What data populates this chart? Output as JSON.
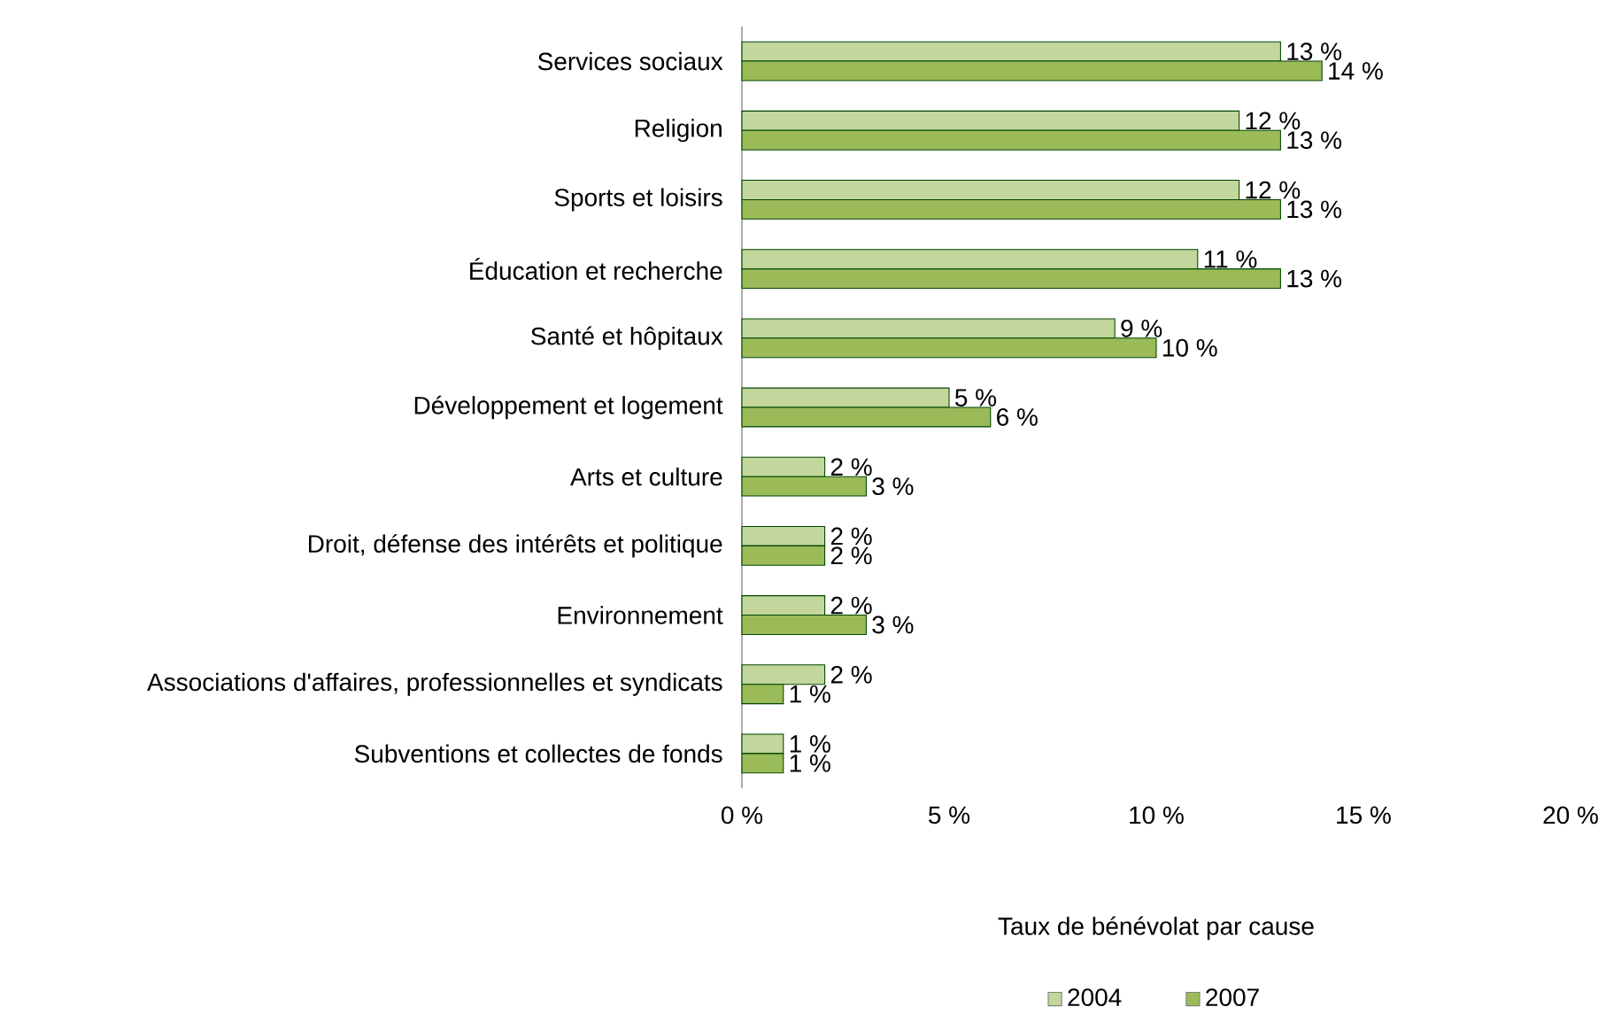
{
  "chart_data": {
    "type": "bar",
    "orientation": "horizontal",
    "xlabel": "Taux de bénévolat par cause",
    "categories": [
      "Services sociaux",
      "Religion",
      "Sports et loisirs",
      "Éducation et recherche",
      "Santé et hôpitaux",
      "Développement et logement",
      "Arts et culture",
      "Droit, défense des intérêts et politique",
      "Environnement",
      "Associations d'affaires, professionnelles et syndicats",
      "Subventions et collectes de fonds"
    ],
    "series": [
      {
        "name": "2004",
        "color": "#c3d69b",
        "values": [
          13,
          12,
          12,
          11,
          9,
          5,
          2,
          2,
          2,
          2,
          1
        ],
        "value_labels": [
          "13 %",
          "12 %",
          "12 %",
          "11 %",
          "9 %",
          "5 %",
          "2 %",
          "2 %",
          "2 %",
          "2 %",
          "1 %"
        ]
      },
      {
        "name": "2007",
        "color": "#9bbb59",
        "values": [
          14,
          13,
          13,
          13,
          10,
          6,
          3,
          2,
          3,
          1,
          1
        ],
        "value_labels": [
          "14 %",
          "13 %",
          "13 %",
          "13 %",
          "10 %",
          "6 %",
          "3 %",
          "2 %",
          "3 %",
          "1 %",
          "1 %"
        ]
      }
    ],
    "xlim": [
      0,
      20
    ],
    "xticks": [
      {
        "value": 0,
        "label": "0 %"
      },
      {
        "value": 5,
        "label": "5 %"
      },
      {
        "value": 10,
        "label": "10 %"
      },
      {
        "value": 15,
        "label": "15 %"
      },
      {
        "value": 20,
        "label": "20 %"
      }
    ],
    "grid": false,
    "legend": "bottom"
  }
}
